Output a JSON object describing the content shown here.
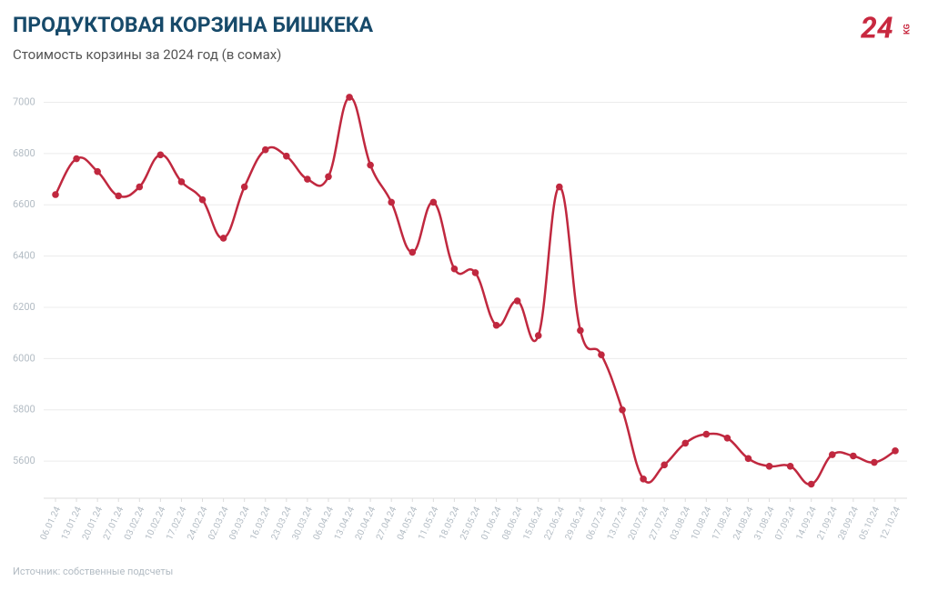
{
  "chart_data": {
    "type": "line",
    "title": "ПРОДУКТОВАЯ КОРЗИНА БИШКЕКА",
    "subtitle": "Стоимость корзины за 2024 год (в сомах)",
    "source": "Источник: собственные подсчеты",
    "categories": [
      "06.01.24",
      "13.01.24",
      "20.01.24",
      "27.01.24",
      "03.02.24",
      "10.02.24",
      "17.02.24",
      "24.02.24",
      "02.03.24",
      "09.03.24",
      "16.03.24",
      "23.03.24",
      "30.03.24",
      "06.04.24",
      "13.04.24",
      "20.04.24",
      "27.04.24",
      "04.05.24",
      "11.05.24",
      "18.05.24",
      "25.05.24",
      "01.06.24",
      "08.06.24",
      "15.06.24",
      "22.06.24",
      "29.06.24",
      "06.07.24",
      "13.07.24",
      "20.07.24",
      "27.07.24",
      "03.08.24",
      "10.08.24",
      "17.08.24",
      "24.08.24",
      "31.08.24",
      "07.09.24",
      "14.09.24",
      "21.09.24",
      "28.09.24",
      "05.10.24",
      "12.10.24"
    ],
    "values": [
      6640,
      6780,
      6730,
      6635,
      6670,
      6795,
      6690,
      6620,
      6470,
      6670,
      6815,
      6790,
      6700,
      6710,
      7020,
      6755,
      6610,
      6415,
      6610,
      6350,
      6335,
      6130,
      6225,
      6090,
      6670,
      6110,
      6015,
      5800,
      5530,
      5585,
      5670,
      5705,
      5690,
      5610,
      5580,
      5580,
      5510,
      5625,
      5620,
      5595,
      5640
    ],
    "color": "#c0283f",
    "ylim": [
      5455,
      7080
    ],
    "yticks": [
      5600,
      5800,
      6000,
      6200,
      6400,
      6600,
      6800,
      7000
    ],
    "grid": true
  },
  "logo": {
    "main": "24",
    "suffix": "KG"
  }
}
